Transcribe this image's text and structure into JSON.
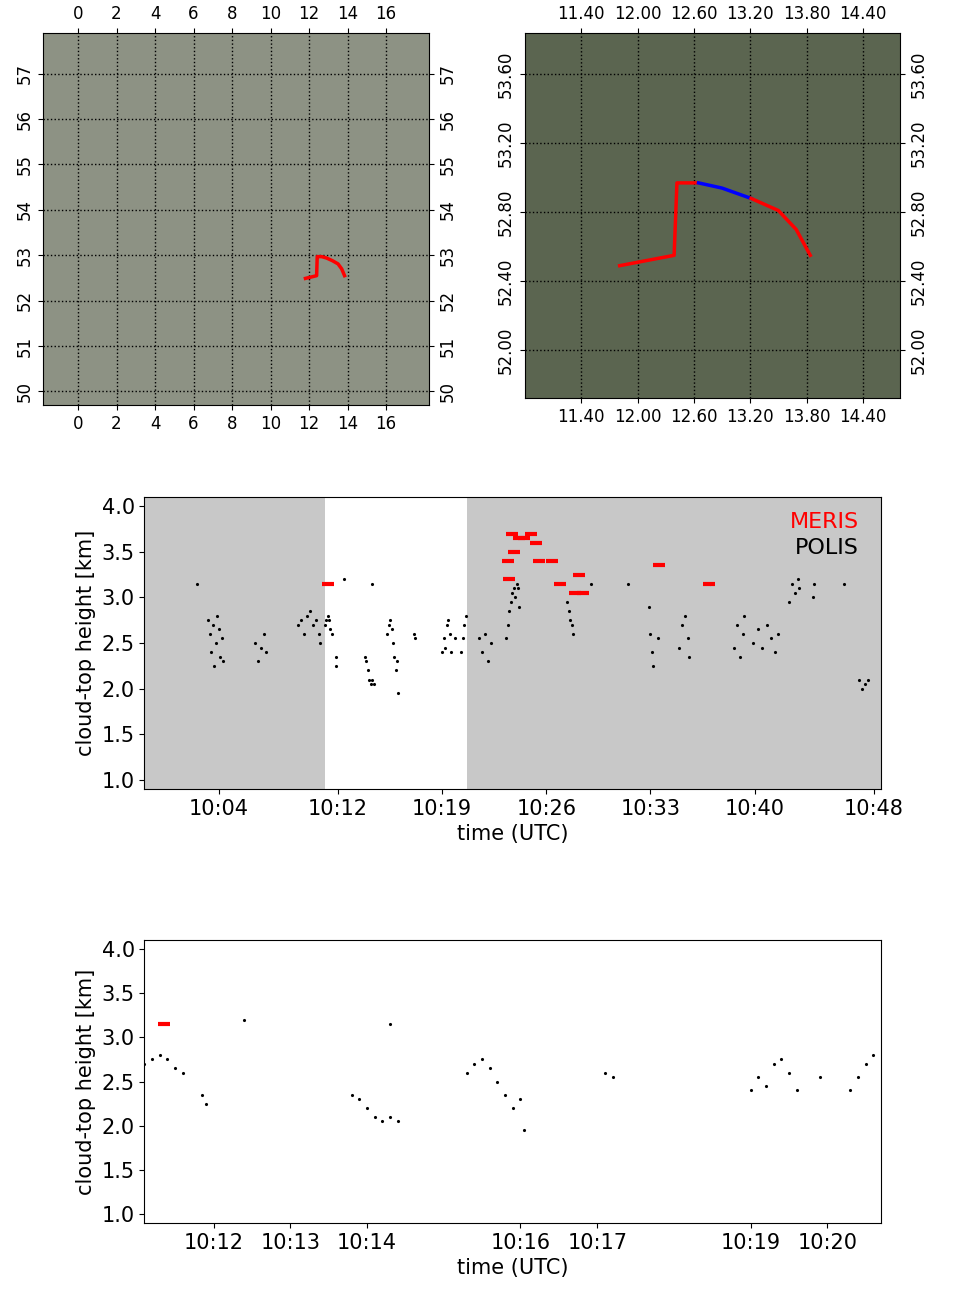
{
  "chart_data": [
    {
      "type": "map",
      "xlim": [
        -1.8,
        18.2
      ],
      "ylim": [
        49.7,
        57.9
      ],
      "xticks": [
        0,
        2,
        4,
        6,
        8,
        10,
        12,
        14,
        16
      ],
      "yticks": [
        50,
        51,
        52,
        53,
        54,
        55,
        56,
        57
      ],
      "grid": true,
      "segments": [
        {
          "color": "#ff0000",
          "x": [
            11.81,
            12.39,
            12.42,
            12.53,
            12.65,
            12.9,
            13.21,
            13.5,
            13.69,
            13.84
          ],
          "y": [
            52.49,
            52.55,
            52.97,
            52.97,
            52.97,
            52.94,
            52.88,
            52.81,
            52.7,
            52.55
          ]
        }
      ]
    },
    {
      "type": "map",
      "xlim": [
        10.8,
        14.8
      ],
      "ylim": [
        51.72,
        53.84
      ],
      "xticks": [
        {
          "value": 11.4,
          "label": "11.40"
        },
        {
          "value": 12.0,
          "label": "12.00"
        },
        {
          "value": 12.6,
          "label": "12.60"
        },
        {
          "value": 13.2,
          "label": "13.20"
        },
        {
          "value": 13.8,
          "label": "13.80"
        },
        {
          "value": 14.4,
          "label": "14.40"
        }
      ],
      "yticks": [
        {
          "value": 52.0,
          "label": "52.00"
        },
        {
          "value": 52.4,
          "label": "52.40"
        },
        {
          "value": 52.8,
          "label": "52.80"
        },
        {
          "value": 53.2,
          "label": "53.20"
        },
        {
          "value": 53.6,
          "label": "53.60"
        }
      ],
      "grid": true,
      "segments": [
        {
          "color": "#ff0000",
          "x": [
            11.81,
            12.39,
            12.42,
            12.53,
            12.65
          ],
          "y": [
            52.49,
            52.55,
            52.97,
            52.97,
            52.97
          ]
        },
        {
          "color": "#0000ff",
          "x": [
            12.65,
            12.9,
            13.21
          ],
          "y": [
            52.97,
            52.94,
            52.88
          ]
        },
        {
          "color": "#ff0000",
          "x": [
            13.21,
            13.5,
            13.69,
            13.84
          ],
          "y": [
            52.88,
            52.81,
            52.7,
            52.55
          ]
        }
      ]
    },
    {
      "type": "scatter",
      "xlabel": "time (UTC)",
      "ylabel": "cloud-top height [km]",
      "xlim": [
        -1,
        48.5
      ],
      "ylim": [
        0.9,
        4.1
      ],
      "xticks": [
        {
          "value": 4,
          "label": "10:04"
        },
        {
          "value": 12,
          "label": "10:12"
        },
        {
          "value": 19,
          "label": "10:19"
        },
        {
          "value": 26,
          "label": "10:26"
        },
        {
          "value": 33,
          "label": "10:33"
        },
        {
          "value": 40,
          "label": "10:40"
        },
        {
          "value": 48,
          "label": "10:48"
        }
      ],
      "yticks": [
        1.0,
        1.5,
        2.0,
        2.5,
        3.0,
        3.5,
        4.0
      ],
      "zoom_range": [
        11.1,
        20.7
      ],
      "legend": "upper right",
      "series": [
        {
          "name": "MERIS",
          "color": "#ff0000",
          "marker": "_",
          "x": [
            11.35,
            23.4,
            23.5,
            23.7,
            23.8,
            24.2,
            24.5,
            25.0,
            25.3,
            25.5,
            26.4,
            26.9,
            27.9,
            28.2,
            28.5,
            33.6,
            36.9
          ],
          "values": [
            3.15,
            3.4,
            3.2,
            3.7,
            3.5,
            3.65,
            3.65,
            3.7,
            3.6,
            3.4,
            3.4,
            3.15,
            3.05,
            3.25,
            3.05,
            3.35,
            3.15
          ]
        },
        {
          "name": "POLIS",
          "color": "#000000",
          "marker": ".",
          "x": [
            2.5,
            3.3,
            3.4,
            3.5,
            3.6,
            3.7,
            3.8,
            3.9,
            4.0,
            4.1,
            4.2,
            4.3,
            6.4,
            6.6,
            6.8,
            7.0,
            7.2,
            9.3,
            9.5,
            9.7,
            9.9,
            10.1,
            10.3,
            10.5,
            10.7,
            10.8,
            11.1,
            11.2,
            11.3,
            11.4,
            11.5,
            11.6,
            11.85,
            11.9,
            12.4,
            13.8,
            13.9,
            14.0,
            14.1,
            14.2,
            14.3,
            14.4,
            14.3,
            15.3,
            15.4,
            15.5,
            15.6,
            15.7,
            15.8,
            15.9,
            16.0,
            16.05,
            17.1,
            17.2,
            19.0,
            19.1,
            19.2,
            19.3,
            19.4,
            19.5,
            19.6,
            19.9,
            20.3,
            20.4,
            20.5,
            20.6,
            21.5,
            21.7,
            21.9,
            22.1,
            22.3,
            23.3,
            23.4,
            23.5,
            23.6,
            23.7,
            23.8,
            23.9,
            24.0,
            24.1,
            24.2,
            27.4,
            27.5,
            27.6,
            27.7,
            27.8,
            29.0,
            31.5,
            32.9,
            33.0,
            33.1,
            33.2,
            33.5,
            34.9,
            35.1,
            35.3,
            35.5,
            35.6,
            37.0,
            38.6,
            38.8,
            39.0,
            39.2,
            39.3,
            39.9,
            40.2,
            40.5,
            40.8,
            41.1,
            41.4,
            41.6,
            42.3,
            42.5,
            42.7,
            42.9,
            43.0,
            43.9,
            44.0,
            46.0,
            47.0,
            47.2,
            47.4,
            47.6
          ],
          "values": [
            3.15,
            2.75,
            2.6,
            2.4,
            2.7,
            2.25,
            2.5,
            2.8,
            2.65,
            2.35,
            2.55,
            2.3,
            2.5,
            2.3,
            2.45,
            2.6,
            2.4,
            2.7,
            2.75,
            2.6,
            2.8,
            2.85,
            2.7,
            2.75,
            2.6,
            2.5,
            2.7,
            2.75,
            2.8,
            2.75,
            2.65,
            2.6,
            2.35,
            2.25,
            3.2,
            2.35,
            2.3,
            2.2,
            2.1,
            2.05,
            2.1,
            2.05,
            3.15,
            2.6,
            2.7,
            2.75,
            2.65,
            2.5,
            2.35,
            2.2,
            2.3,
            1.95,
            2.6,
            2.55,
            2.4,
            2.55,
            2.45,
            2.7,
            2.75,
            2.6,
            2.4,
            2.55,
            2.4,
            2.55,
            2.7,
            2.8,
            2.55,
            2.4,
            2.6,
            2.3,
            2.5,
            2.55,
            2.7,
            2.85,
            2.95,
            3.05,
            3.1,
            3.0,
            3.15,
            3.1,
            2.9,
            2.95,
            2.85,
            2.75,
            2.7,
            2.6,
            3.15,
            3.15,
            2.9,
            2.6,
            2.4,
            2.25,
            2.55,
            2.45,
            2.7,
            2.8,
            2.55,
            2.35,
            3.15,
            2.45,
            2.7,
            2.35,
            2.6,
            2.8,
            2.5,
            2.65,
            2.45,
            2.7,
            2.55,
            2.4,
            2.6,
            2.95,
            3.15,
            3.05,
            3.2,
            3.1,
            3.0,
            3.15,
            3.15,
            2.1,
            2.0,
            2.05,
            2.1
          ]
        }
      ]
    },
    {
      "type": "scatter",
      "xlabel": "time (UTC)",
      "ylabel": "cloud-top height [km]",
      "xlim": [
        11.1,
        20.7
      ],
      "ylim": [
        0.9,
        4.1
      ],
      "xticks": [
        {
          "value": 12,
          "label": "10:12"
        },
        {
          "value": 13,
          "label": "10:13"
        },
        {
          "value": 14,
          "label": "10:14"
        },
        {
          "value": 16,
          "label": "10:16"
        },
        {
          "value": 17,
          "label": "10:17"
        },
        {
          "value": 19,
          "label": "10:19"
        },
        {
          "value": 20,
          "label": "10:20"
        }
      ],
      "yticks": [
        1.0,
        1.5,
        2.0,
        2.5,
        3.0,
        3.5,
        4.0
      ],
      "series": [
        {
          "color": "#ff0000",
          "marker": "_",
          "x": [
            11.35
          ],
          "values": [
            3.15
          ]
        },
        {
          "color": "#000000",
          "marker": ".",
          "x": [
            11.1,
            11.2,
            11.3,
            11.4,
            11.5,
            11.6,
            11.85,
            11.9,
            12.4,
            13.8,
            13.9,
            14.0,
            14.1,
            14.2,
            14.3,
            14.4,
            14.3,
            15.3,
            15.4,
            15.5,
            15.6,
            15.7,
            15.8,
            15.9,
            16.0,
            16.05,
            17.1,
            17.2,
            19.0,
            19.1,
            19.2,
            19.3,
            19.4,
            19.5,
            19.6,
            19.9,
            20.3,
            20.4,
            20.5,
            20.6
          ],
          "values": [
            2.7,
            2.75,
            2.8,
            2.75,
            2.65,
            2.6,
            2.35,
            2.25,
            3.2,
            2.35,
            2.3,
            2.2,
            2.1,
            2.05,
            2.1,
            2.05,
            3.15,
            2.6,
            2.7,
            2.75,
            2.65,
            2.5,
            2.35,
            2.2,
            2.3,
            1.95,
            2.6,
            2.55,
            2.4,
            2.55,
            2.45,
            2.7,
            2.75,
            2.6,
            2.4,
            2.55,
            2.4,
            2.55,
            2.7,
            2.8
          ]
        }
      ]
    }
  ]
}
